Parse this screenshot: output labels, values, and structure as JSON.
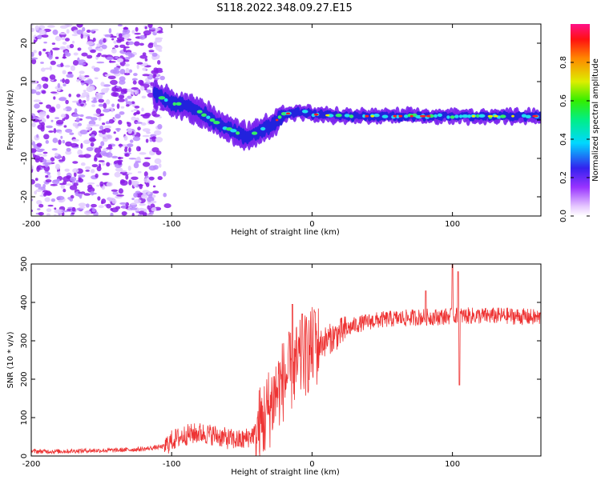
{
  "title": "S118.2022.348.09.27.E15",
  "chart_data": [
    {
      "type": "heatmap",
      "xlabel": "Height of straight line (km)",
      "ylabel": "Frequency (Hz)",
      "xlim": [
        -200,
        163
      ],
      "ylim": [
        -25,
        25
      ],
      "xticks": [
        -200,
        -100,
        0,
        100
      ],
      "yticks": [
        -20,
        -10,
        0,
        10,
        20
      ],
      "grid": false,
      "colorbar": {
        "label": "Normalized spectral amplitude",
        "range": [
          0,
          1
        ],
        "ticks": [
          0.0,
          0.2,
          0.4,
          0.6,
          0.8
        ],
        "colormap": "rainbow (white-violet-blue-cyan-green-yellow-red-pink)"
      },
      "ridge": {
        "x": [
          -112,
          -105,
          -95,
          -85,
          -75,
          -65,
          -55,
          -45,
          -38,
          -30,
          -25,
          -20,
          -15,
          -10,
          -5,
          0,
          20,
          50,
          80,
          110,
          140,
          163
        ],
        "freq": [
          7,
          5.5,
          4,
          3,
          1,
          -1.5,
          -3,
          -4.5,
          -3,
          -1.5,
          0,
          1.5,
          1.8,
          2,
          2,
          1.5,
          1,
          1,
          1,
          1,
          1,
          1
        ]
      }
    },
    {
      "type": "line",
      "xlabel": "Height of straight line (km)",
      "ylabel": "SNR (10 * v/v)",
      "xlim": [
        -200,
        163
      ],
      "ylim": [
        0,
        500
      ],
      "xticks": [
        -200,
        -100,
        0,
        100
      ],
      "yticks": [
        0,
        100,
        200,
        300,
        400,
        500
      ],
      "grid": false,
      "color": "#ee3333",
      "series": [
        {
          "x": [
            -200,
            -180,
            -160,
            -140,
            -120,
            -105,
            -100,
            -90,
            -80,
            -70,
            -60,
            -50,
            -45,
            -40,
            -35,
            -30,
            -25,
            -20,
            -15,
            -10,
            -5,
            0,
            5,
            10,
            15,
            20,
            25,
            30,
            40,
            50,
            60,
            70,
            80,
            90,
            100,
            110,
            120,
            140,
            163
          ],
          "values": [
            12,
            12,
            14,
            15,
            18,
            25,
            40,
            55,
            60,
            55,
            45,
            40,
            50,
            60,
            90,
            130,
            170,
            200,
            220,
            240,
            260,
            280,
            290,
            300,
            310,
            320,
            330,
            340,
            350,
            355,
            358,
            360,
            362,
            362,
            365,
            365,
            365,
            365,
            360
          ]
        }
      ],
      "spikes": [
        {
          "x": -14,
          "value": 395
        },
        {
          "x": -7,
          "value": 370
        },
        {
          "x": 2,
          "value": 375
        },
        {
          "x": 81,
          "value": 430
        },
        {
          "x": 100,
          "value": 500
        },
        {
          "x": 104,
          "value": 480
        },
        {
          "x": 105,
          "value": 185
        }
      ]
    }
  ]
}
